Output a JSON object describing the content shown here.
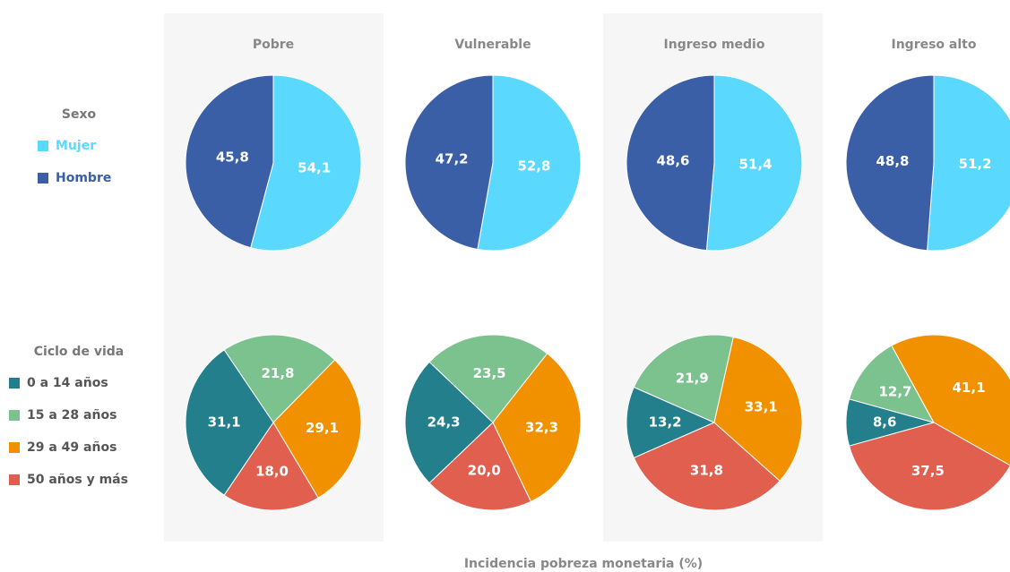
{
  "chart_data": {
    "type": "pie",
    "xlabel": "Incidencia pobreza monetaria (%)",
    "categories": [
      "Pobre",
      "Vulnerable",
      "Ingreso medio",
      "Ingreso alto"
    ],
    "groups": [
      {
        "title": "Sexo",
        "series": [
          {
            "name": "Mujer",
            "color": "#5bd8fd",
            "values": [
              54.1,
              52.8,
              51.4,
              51.2
            ],
            "value_labels": [
              "54,1",
              "52,8",
              "51,4",
              "51,2"
            ]
          },
          {
            "name": "Hombre",
            "color": "#3a5fa6",
            "values": [
              45.8,
              47.2,
              48.6,
              48.8
            ],
            "value_labels": [
              "45,8",
              "47,2",
              "48,6",
              "48,8"
            ]
          }
        ]
      },
      {
        "title": "Ciclo de vida",
        "series": [
          {
            "name": "0 a 14 años",
            "color": "#237f8c",
            "values": [
              31.1,
              24.3,
              13.2,
              8.6
            ],
            "value_labels": [
              "31,1",
              "24,3",
              "13,2",
              "8,6"
            ]
          },
          {
            "name": "15 a 28 años",
            "color": "#7cc28e",
            "values": [
              21.8,
              23.5,
              21.9,
              12.7
            ],
            "value_labels": [
              "21,8",
              "23,5",
              "21,9",
              "12,7"
            ]
          },
          {
            "name": "29 a 49 años",
            "color": "#f29100",
            "values": [
              29.1,
              32.3,
              33.1,
              41.1
            ],
            "value_labels": [
              "29,1",
              "32,3",
              "33,1",
              "41,1"
            ]
          },
          {
            "name": "50 años y más",
            "color": "#e05f4f",
            "values": [
              18.0,
              20.0,
              31.8,
              37.5
            ],
            "value_labels": [
              "18,0",
              "20,0",
              "31,8",
              "37,5"
            ]
          }
        ]
      }
    ]
  }
}
